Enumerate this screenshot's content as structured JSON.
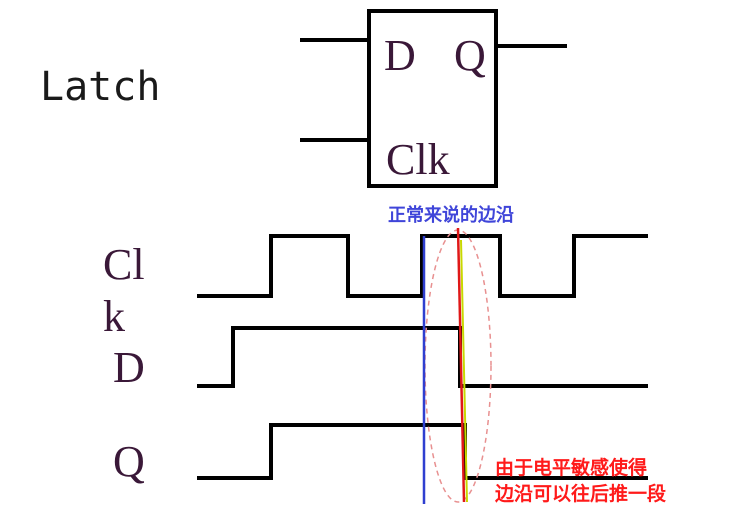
{
  "title": "Latch",
  "block": {
    "pin_d": "D",
    "pin_q": "Q",
    "pin_clk": "Clk"
  },
  "waveforms": {
    "clk_label_line1": "Cl",
    "clk_label_line2": "k",
    "d_label": "D",
    "q_label": "Q"
  },
  "annotations": {
    "normal_edge": "正常来说的边沿",
    "shifted_edge_line1": "由于电平敏感使得",
    "shifted_edge_line2": "边沿可以往后推一段"
  },
  "colors": {
    "normal_edge_line": "#2f3fd0",
    "shifted_edge_line": "#e01818",
    "shifted_edge_highlight": "#c8d800",
    "ellipse": "#e89090",
    "normal_note": "#3f45d9",
    "shifted_note": "#ff1a1a"
  }
}
